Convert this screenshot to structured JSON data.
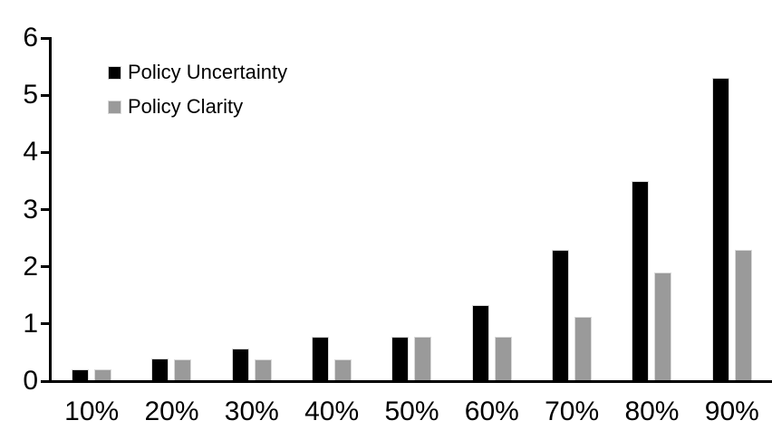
{
  "chart_data": {
    "type": "bar",
    "title": "",
    "xlabel": "",
    "ylabel": "",
    "categories": [
      "10%",
      "20%",
      "30%",
      "40%",
      "50%",
      "60%",
      "70%",
      "80%",
      "90%"
    ],
    "series": [
      {
        "name": "Policy Uncertainty",
        "color": "#000000",
        "values": [
          0.2,
          0.4,
          0.57,
          0.77,
          0.78,
          1.33,
          2.3,
          3.5,
          5.3
        ]
      },
      {
        "name": "Policy Clarity",
        "color": "#9A9A9A",
        "values": [
          0.2,
          0.38,
          0.38,
          0.38,
          0.77,
          0.77,
          1.13,
          1.9,
          2.3
        ]
      }
    ],
    "ylim": [
      0,
      6
    ],
    "yticks": [
      0,
      1,
      2,
      3,
      4,
      5,
      6
    ],
    "grid": false,
    "legend_position": "top-left",
    "axis_color": "#000000",
    "bar_border_color": "#D9D9D9",
    "background_color": "#FFFFFF"
  }
}
